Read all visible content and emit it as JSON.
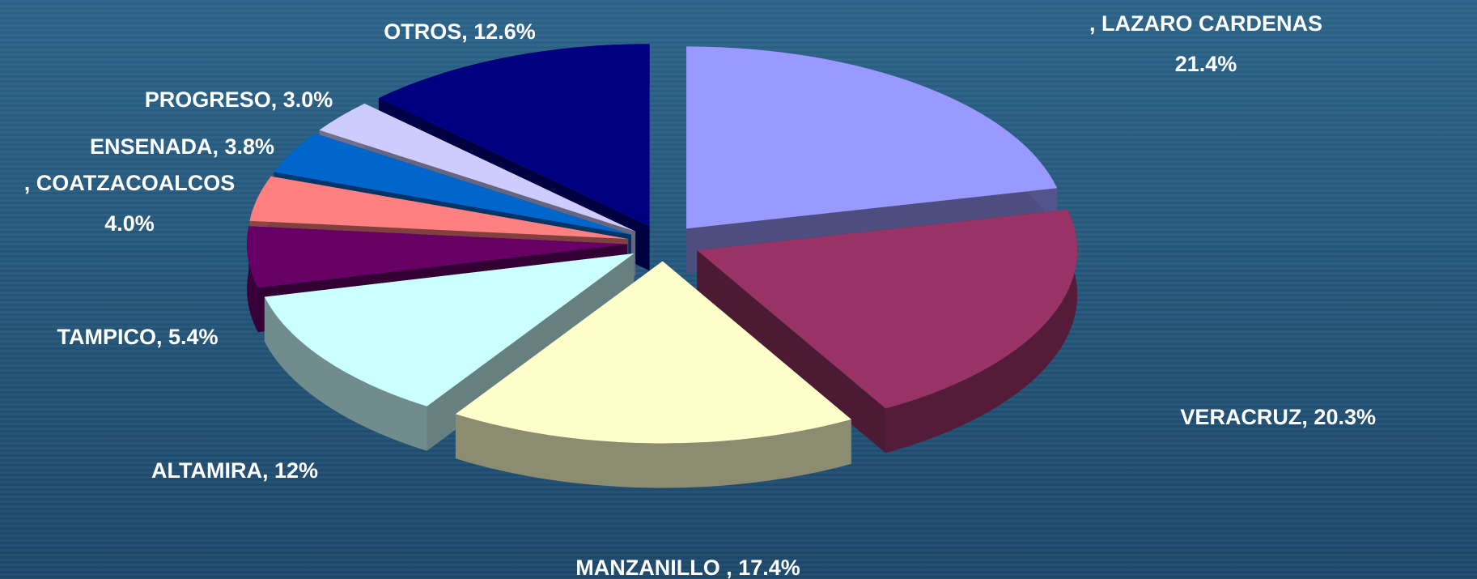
{
  "chart_data": {
    "type": "pie3d",
    "labels": [
      [
        ", LAZARO CARDENAS",
        "21.4%"
      ],
      [
        "VERACRUZ, 20.3%"
      ],
      [
        "MANZANILLO , 17.4%"
      ],
      [
        "ALTAMIRA, 12%"
      ],
      [
        "TAMPICO, 5.4%"
      ],
      [
        ", COATZACOALCOS",
        "4.0%"
      ],
      [
        "ENSENADA, 3.8%"
      ],
      [
        "PROGRESO, 3.0%"
      ],
      [
        "OTROS, 12.6%"
      ]
    ],
    "values": [
      21.4,
      20.3,
      17.4,
      12,
      5.4,
      4.0,
      3.8,
      3.0,
      12.6
    ],
    "colors": [
      "#9999ff",
      "#993366",
      "#ffffcc",
      "#ccffff",
      "#660066",
      "#ff8080",
      "#0066cc",
      "#ccccff",
      "#000080"
    ]
  }
}
